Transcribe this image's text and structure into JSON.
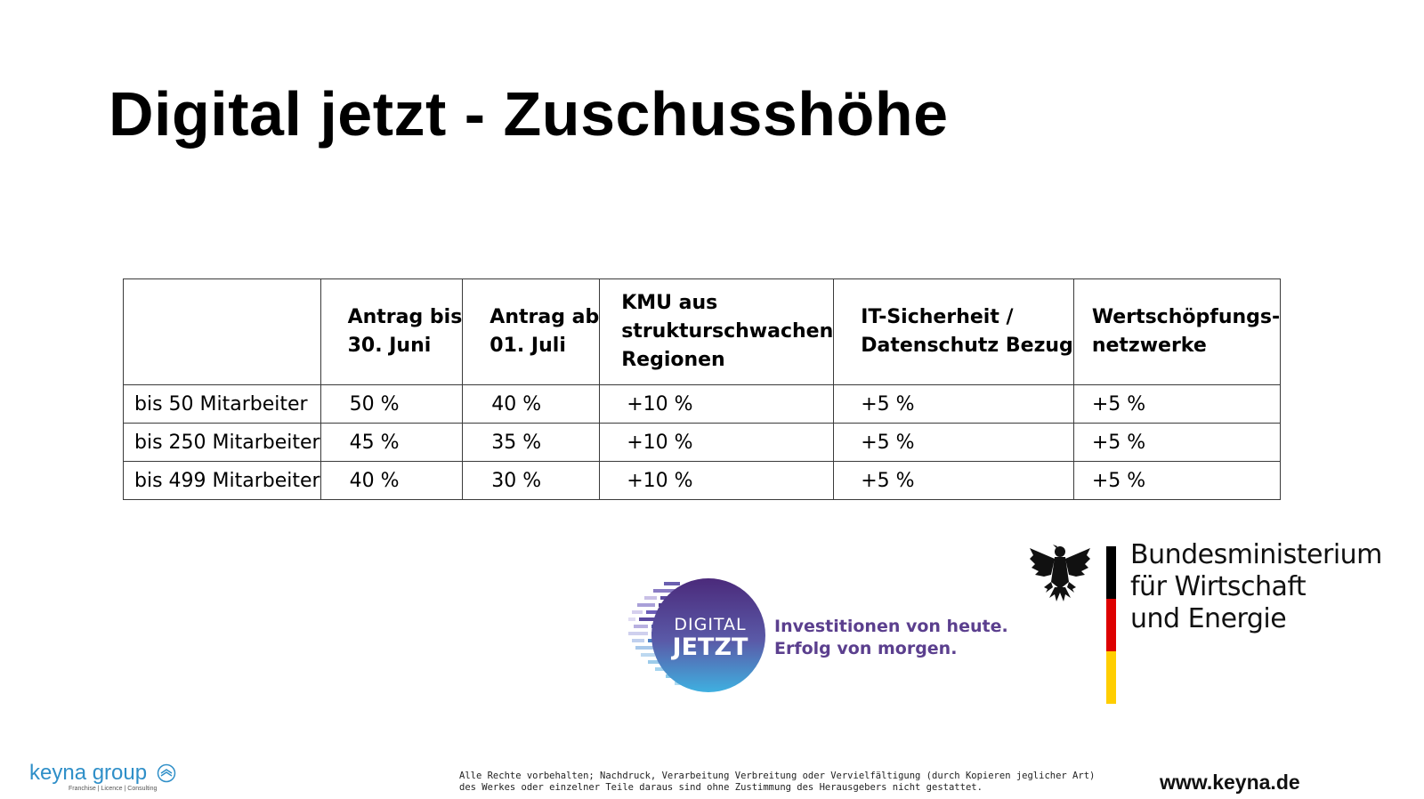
{
  "title": "Digital jetzt - Zuschusshöhe",
  "table": {
    "headers": [
      "",
      [
        "Antrag bis",
        "30. Juni"
      ],
      [
        "Antrag ab",
        "01. Juli"
      ],
      [
        "KMU aus",
        "strukturschwachen",
        "Regionen"
      ],
      [
        "IT-Sicherheit /",
        "Datenschutz Bezug"
      ],
      [
        "Wertschöpfungs-",
        "netzwerke"
      ]
    ],
    "rows": [
      [
        "bis 50 Mitarbeiter",
        "50 %",
        "40 %",
        "+10 %",
        "+5 %",
        "+5 %"
      ],
      [
        "bis 250 Mitarbeiter",
        "45 %",
        "35 %",
        "+10 %",
        "+5 %",
        "+5 %"
      ],
      [
        "bis 499 Mitarbeiter",
        "40 %",
        "30 %",
        "+10 %",
        "+5 %",
        "+5 %"
      ]
    ]
  },
  "digital_jetzt_logo": {
    "line1": "DIGITAL",
    "line2": "JETZT",
    "tagline": [
      "Investitionen von heute.",
      "Erfolg von morgen."
    ],
    "color": "#5b3f8e"
  },
  "ministry_logo": {
    "lines": [
      "Bundesministerium",
      "für Wirtschaft",
      "und Energie"
    ],
    "flag_colors": [
      "#000000",
      "#dd0000",
      "#ffce00"
    ]
  },
  "footer": {
    "brand": "keyna group",
    "brand_sub": "Franchise | Licence | Consulting",
    "legal": [
      "Alle Rechte vorbehalten; Nachdruck, Verarbeitung Verbreitung oder Vervielfältigung (durch Kopieren jeglicher Art)",
      "des Werkes oder einzelner Teile daraus sind ohne Zustimmung des Herausgebers nicht gestattet."
    ],
    "website": "www.keyna.de",
    "brand_color": "#2f8fc8"
  }
}
